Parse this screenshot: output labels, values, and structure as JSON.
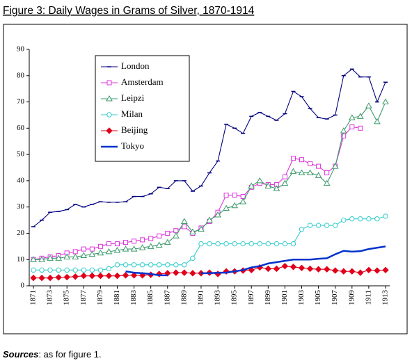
{
  "chart_data": {
    "type": "line",
    "title": "Figure 3: Daily Wages in Grams of Silver, 1870-1914",
    "x": [
      1871,
      1872,
      1873,
      1874,
      1875,
      1876,
      1877,
      1878,
      1879,
      1880,
      1881,
      1882,
      1883,
      1884,
      1885,
      1886,
      1887,
      1888,
      1889,
      1890,
      1891,
      1892,
      1893,
      1894,
      1895,
      1896,
      1897,
      1898,
      1899,
      1900,
      1901,
      1902,
      1903,
      1904,
      1905,
      1906,
      1907,
      1908,
      1909,
      1910,
      1911,
      1912,
      1913
    ],
    "xlim": [
      1870.5,
      1913.5
    ],
    "xticks": [
      1871,
      1873,
      1875,
      1877,
      1879,
      1881,
      1883,
      1885,
      1887,
      1889,
      1891,
      1893,
      1895,
      1897,
      1899,
      1901,
      1903,
      1905,
      1907,
      1909,
      1911,
      1913
    ],
    "ylim": [
      0,
      90
    ],
    "yticks": [
      0,
      10,
      20,
      30,
      40,
      50,
      60,
      70,
      80,
      90
    ],
    "grid": false,
    "legend": "upper left",
    "series": [
      {
        "name": "London",
        "color": "#000080",
        "marker": "dash",
        "values": [
          22.5,
          25,
          28,
          28.3,
          29,
          31,
          30,
          31,
          32,
          31.8,
          31.8,
          32,
          34,
          34,
          35,
          37.5,
          37,
          40,
          40,
          36,
          38,
          43,
          47.5,
          61.5,
          60,
          58,
          64.5,
          66,
          64.5,
          63,
          65.5,
          74,
          72,
          67.5,
          64,
          63.5,
          65,
          80,
          82.5,
          79.5,
          79.5,
          70,
          77.5
        ]
      },
      {
        "name": "Amsterdam",
        "color": "#dd33dd",
        "marker": "square",
        "values": [
          10,
          10.5,
          11,
          11.5,
          12.5,
          13,
          14,
          14,
          15,
          16,
          16,
          16.5,
          17,
          17.5,
          18,
          19,
          20,
          21,
          22.5,
          20,
          22,
          24.5,
          28,
          34.5,
          34.5,
          34,
          37.5,
          39,
          38.5,
          38.5,
          41.5,
          48.5,
          48,
          46.5,
          45.5,
          43,
          45.5,
          57,
          60.5,
          60,
          null,
          null,
          null
        ]
      },
      {
        "name": "Leipzi",
        "color": "#3a9a6a",
        "marker": "triangle",
        "values": [
          10,
          10,
          10.5,
          10.5,
          11,
          11,
          11.5,
          12,
          12.5,
          13,
          13.5,
          14,
          14,
          14.5,
          15,
          15.5,
          16.5,
          19,
          24.5,
          20.5,
          21.5,
          25,
          27,
          29.5,
          30.5,
          32,
          38,
          40,
          38,
          37,
          39,
          43.5,
          43,
          43,
          42,
          39,
          45.5,
          59,
          64,
          64.5,
          68.5,
          62.5,
          70
        ]
      },
      {
        "name": "Milan",
        "color": "#33cccc",
        "marker": "circle",
        "values": [
          6,
          6,
          6,
          6,
          6,
          6,
          6,
          6,
          6,
          6.5,
          8,
          8,
          8,
          8,
          8,
          8,
          8,
          8,
          8,
          10.5,
          16,
          16,
          16,
          16,
          16,
          16,
          16,
          16,
          16,
          16,
          16,
          16,
          21.5,
          23,
          23,
          23,
          23,
          25,
          25.5,
          25.5,
          25.5,
          25.5,
          26.5
        ]
      },
      {
        "name": "Beijing",
        "color": "#e0001b",
        "marker": "diamond",
        "values": [
          3,
          3,
          3,
          3.2,
          3.3,
          3.5,
          3.8,
          3.8,
          3.8,
          3.8,
          3.8,
          4,
          4,
          4,
          4.2,
          4.5,
          4.8,
          5,
          5,
          4.8,
          4.8,
          5,
          4.5,
          5.5,
          5.5,
          5.8,
          6,
          7,
          6.5,
          6.5,
          7.5,
          7.2,
          6.8,
          6.5,
          6.3,
          6.3,
          5.8,
          5.5,
          5.5,
          5,
          6,
          5.8,
          6
        ]
      },
      {
        "name": "Tokyo",
        "color": "#0033cc",
        "marker": "none",
        "values": [
          null,
          null,
          null,
          null,
          null,
          null,
          null,
          null,
          null,
          null,
          null,
          5.5,
          5,
          4.8,
          4.5,
          4,
          4,
          null,
          null,
          null,
          4.8,
          4.8,
          5,
          5,
          5.5,
          6,
          7,
          7.5,
          8.5,
          9,
          9.5,
          10,
          10,
          10,
          10.3,
          10.5,
          12,
          13.3,
          13,
          13.2,
          14,
          14.5,
          15
        ]
      }
    ]
  },
  "footer": {
    "label": "Sources",
    "text": ": as for figure 1."
  }
}
